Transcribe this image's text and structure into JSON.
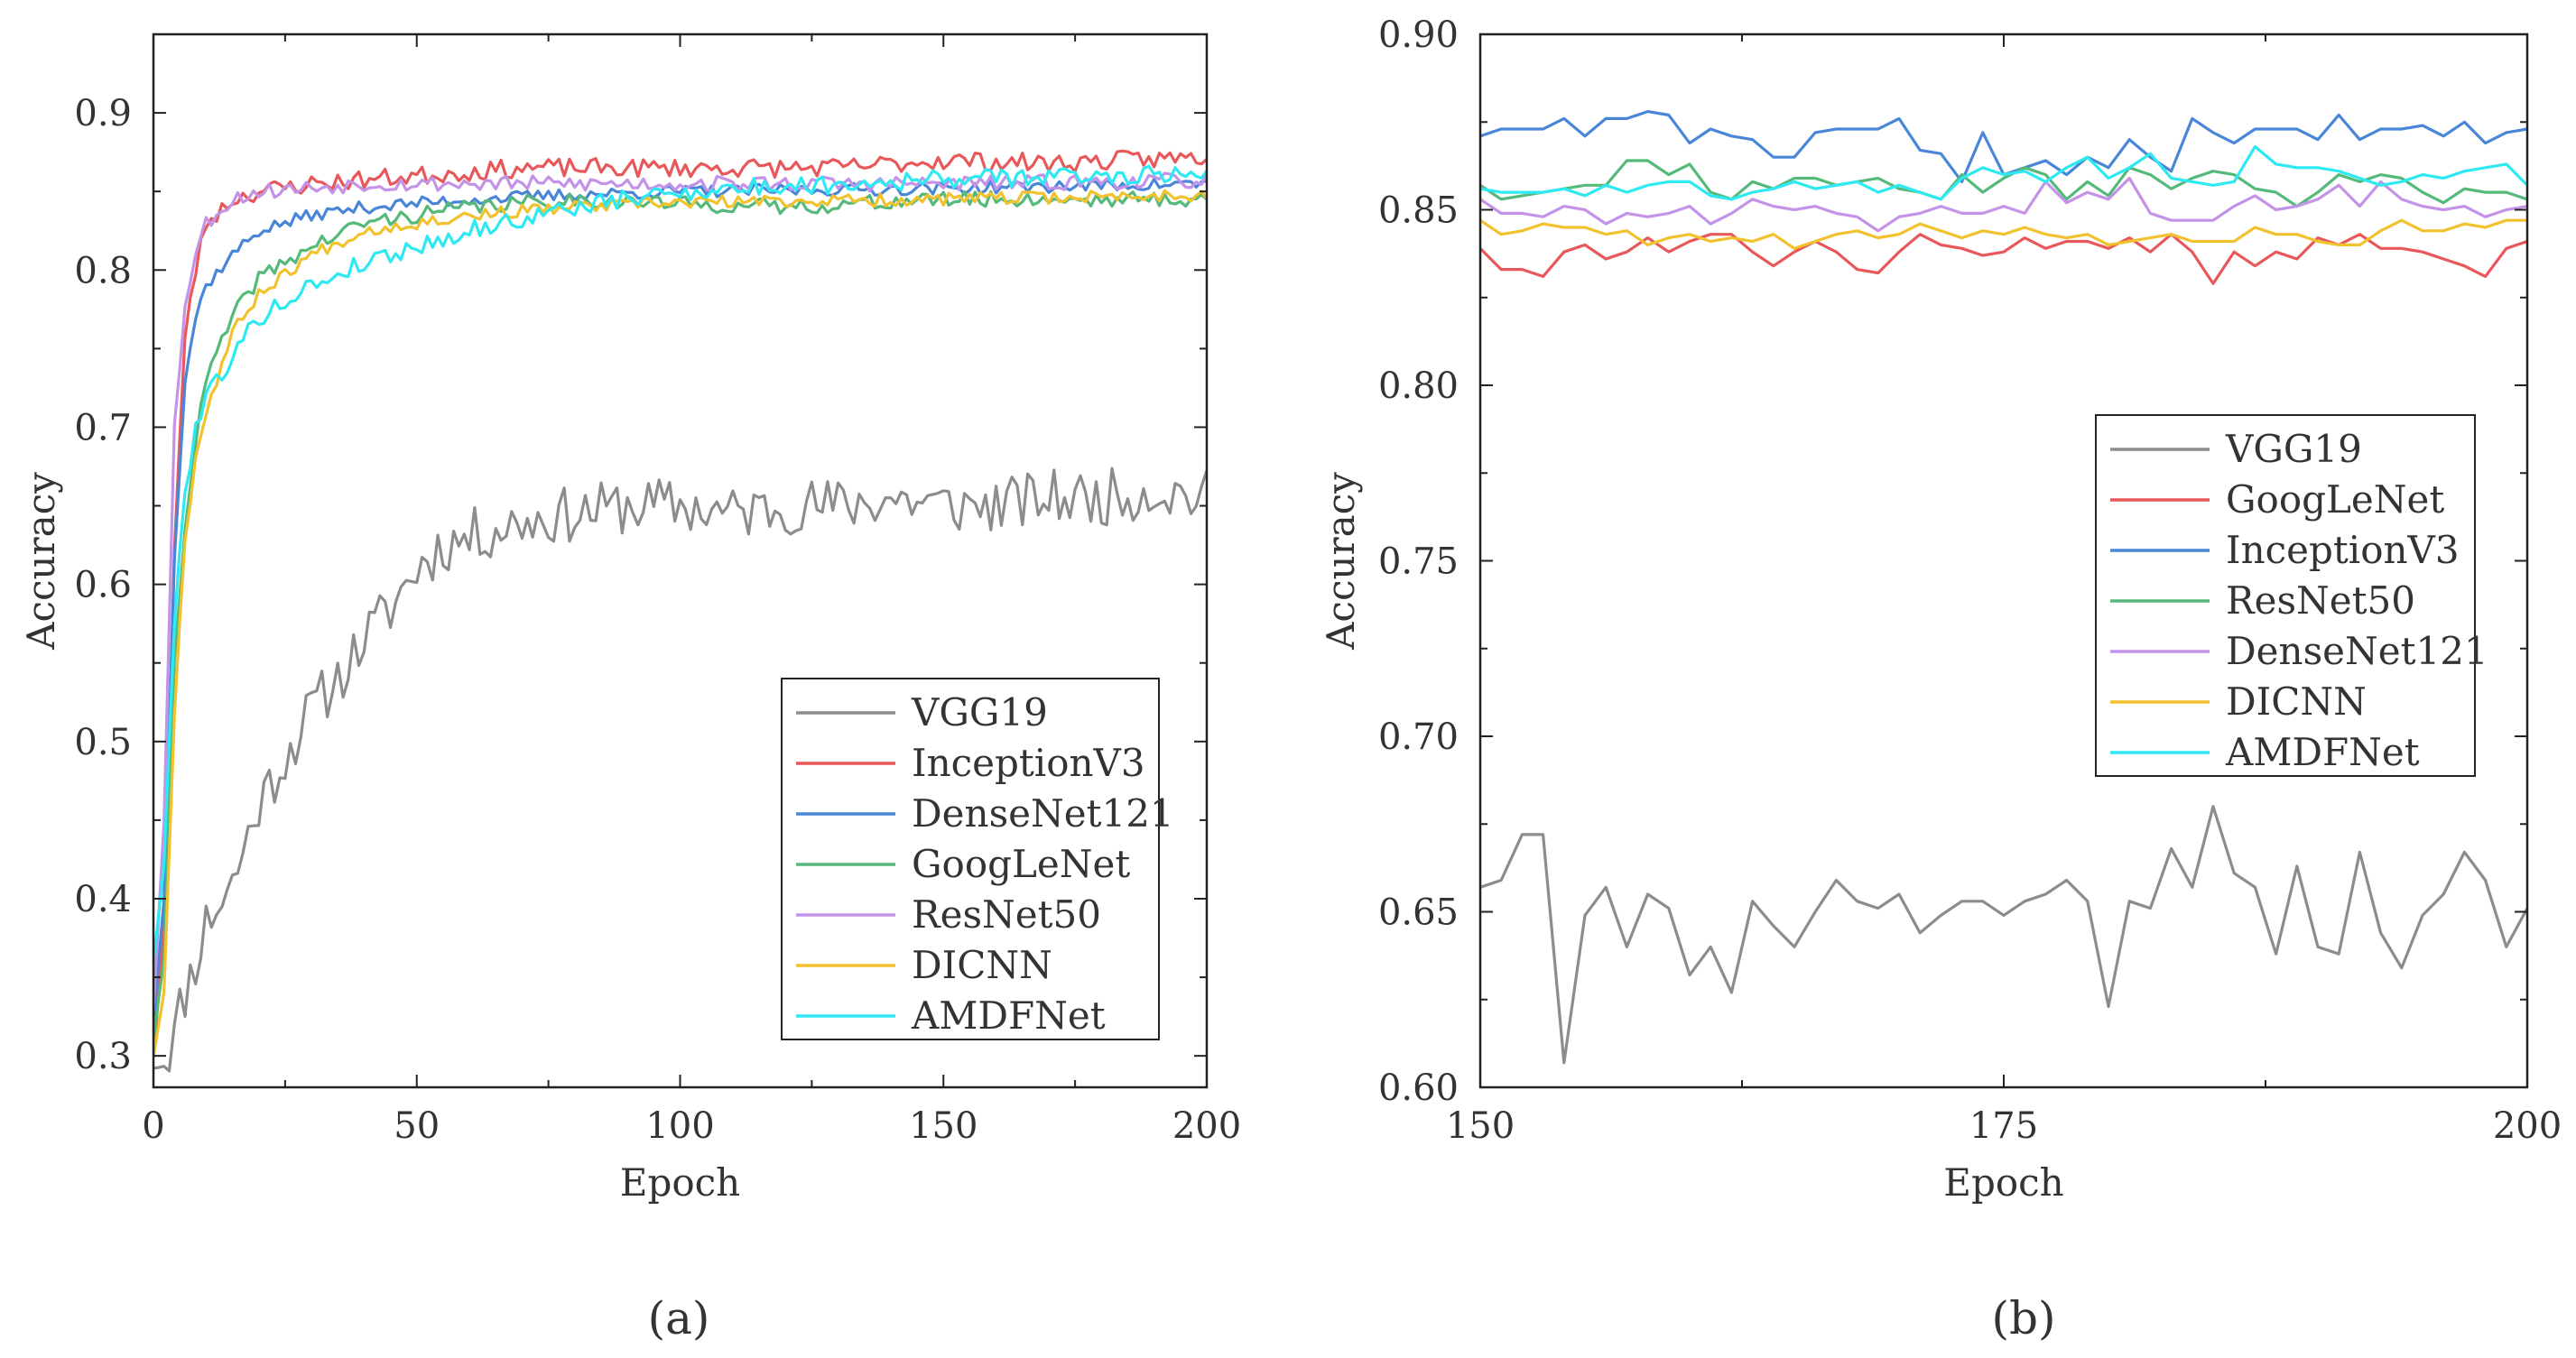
{
  "chart_data": [
    {
      "id": "panel-a",
      "caption": "(a)",
      "type": "line",
      "xlabel": "Epoch",
      "ylabel": "Accuracy",
      "xlim": [
        0,
        200
      ],
      "ylim": [
        0.28,
        0.95
      ],
      "xticks": [
        0,
        50,
        100,
        150,
        200
      ],
      "xtick_labels": [
        "0",
        "50",
        "100",
        "150",
        "200"
      ],
      "yticks": [
        0.3,
        0.4,
        0.5,
        0.6,
        0.7,
        0.8,
        0.9
      ],
      "ytick_labels": [
        "0.3",
        "0.4",
        "0.5",
        "0.6",
        "0.7",
        "0.8",
        "0.9"
      ],
      "legend_position": "bottom-right",
      "legend": [
        "VGG19",
        "InceptionV3",
        "DenseNet121",
        "GoogLeNet",
        "ResNet50",
        "DICNN",
        "AMDFNet"
      ],
      "series": [
        {
          "name": "VGG19",
          "color": "#8c8c8c",
          "start": 0.295,
          "plateau": 0.645,
          "tau": 28,
          "noise": 0.018,
          "seed": 11,
          "anchors": [
            [
              0,
              0.295
            ],
            [
              3,
              0.295
            ],
            [
              5,
              0.33
            ],
            [
              8,
              0.36
            ],
            [
              10,
              0.385
            ],
            [
              15,
              0.41
            ],
            [
              20,
              0.46
            ],
            [
              25,
              0.49
            ],
            [
              30,
              0.52
            ],
            [
              35,
              0.54
            ],
            [
              40,
              0.565
            ],
            [
              45,
              0.585
            ],
            [
              50,
              0.61
            ],
            [
              55,
              0.625
            ],
            [
              60,
              0.63
            ],
            [
              70,
              0.64
            ],
            [
              80,
              0.645
            ],
            [
              90,
              0.65
            ],
            [
              100,
              0.65
            ],
            [
              110,
              0.645
            ],
            [
              120,
              0.65
            ],
            [
              130,
              0.65
            ],
            [
              140,
              0.655
            ],
            [
              150,
              0.65
            ],
            [
              160,
              0.65
            ],
            [
              170,
              0.655
            ],
            [
              180,
              0.655
            ],
            [
              190,
              0.66
            ],
            [
              200,
              0.655
            ]
          ]
        },
        {
          "name": "InceptionV3",
          "color": "#e8585a",
          "noise": 0.006,
          "seed": 23,
          "anchors": [
            [
              0,
              0.3
            ],
            [
              2,
              0.38
            ],
            [
              4,
              0.62
            ],
            [
              6,
              0.76
            ],
            [
              8,
              0.8
            ],
            [
              10,
              0.83
            ],
            [
              15,
              0.845
            ],
            [
              20,
              0.85
            ],
            [
              30,
              0.855
            ],
            [
              50,
              0.86
            ],
            [
              70,
              0.865
            ],
            [
              100,
              0.865
            ],
            [
              130,
              0.865
            ],
            [
              150,
              0.87
            ],
            [
              170,
              0.868
            ],
            [
              200,
              0.872
            ]
          ]
        },
        {
          "name": "DenseNet121",
          "color": "#4a86d8",
          "noise": 0.004,
          "seed": 37,
          "anchors": [
            [
              0,
              0.32
            ],
            [
              2,
              0.4
            ],
            [
              4,
              0.62
            ],
            [
              6,
              0.73
            ],
            [
              8,
              0.77
            ],
            [
              10,
              0.79
            ],
            [
              15,
              0.81
            ],
            [
              20,
              0.825
            ],
            [
              30,
              0.835
            ],
            [
              40,
              0.84
            ],
            [
              60,
              0.845
            ],
            [
              80,
              0.848
            ],
            [
              100,
              0.85
            ],
            [
              150,
              0.852
            ],
            [
              200,
              0.855
            ]
          ]
        },
        {
          "name": "GoogLeNet",
          "color": "#55b97a",
          "noise": 0.005,
          "seed": 41,
          "anchors": [
            [
              0,
              0.31
            ],
            [
              2,
              0.36
            ],
            [
              4,
              0.55
            ],
            [
              6,
              0.64
            ],
            [
              8,
              0.69
            ],
            [
              10,
              0.73
            ],
            [
              15,
              0.77
            ],
            [
              20,
              0.795
            ],
            [
              30,
              0.815
            ],
            [
              40,
              0.83
            ],
            [
              60,
              0.84
            ],
            [
              80,
              0.845
            ],
            [
              100,
              0.842
            ],
            [
              120,
              0.84
            ],
            [
              150,
              0.845
            ],
            [
              200,
              0.845
            ]
          ]
        },
        {
          "name": "ResNet50",
          "color": "#c493e8",
          "noise": 0.005,
          "seed": 53,
          "anchors": [
            [
              0,
              0.33
            ],
            [
              2,
              0.45
            ],
            [
              4,
              0.7
            ],
            [
              6,
              0.78
            ],
            [
              8,
              0.81
            ],
            [
              10,
              0.83
            ],
            [
              15,
              0.845
            ],
            [
              20,
              0.85
            ],
            [
              40,
              0.855
            ],
            [
              60,
              0.855
            ],
            [
              100,
              0.855
            ],
            [
              150,
              0.855
            ],
            [
              200,
              0.857
            ]
          ]
        },
        {
          "name": "DICNN",
          "color": "#f2c22e",
          "noise": 0.004,
          "seed": 67,
          "anchors": [
            [
              0,
              0.3
            ],
            [
              2,
              0.34
            ],
            [
              4,
              0.52
            ],
            [
              6,
              0.63
            ],
            [
              8,
              0.68
            ],
            [
              10,
              0.71
            ],
            [
              15,
              0.76
            ],
            [
              20,
              0.785
            ],
            [
              30,
              0.81
            ],
            [
              40,
              0.825
            ],
            [
              60,
              0.835
            ],
            [
              80,
              0.84
            ],
            [
              100,
              0.843
            ],
            [
              150,
              0.845
            ],
            [
              200,
              0.848
            ]
          ]
        },
        {
          "name": "AMDFNet",
          "color": "#2ee9f2",
          "noise": 0.006,
          "seed": 79,
          "anchors": [
            [
              0,
              0.36
            ],
            [
              2,
              0.42
            ],
            [
              4,
              0.58
            ],
            [
              6,
              0.66
            ],
            [
              8,
              0.7
            ],
            [
              10,
              0.72
            ],
            [
              15,
              0.745
            ],
            [
              20,
              0.77
            ],
            [
              30,
              0.79
            ],
            [
              40,
              0.805
            ],
            [
              50,
              0.815
            ],
            [
              60,
              0.825
            ],
            [
              80,
              0.84
            ],
            [
              100,
              0.85
            ],
            [
              130,
              0.855
            ],
            [
              150,
              0.858
            ],
            [
              180,
              0.86
            ],
            [
              200,
              0.862
            ]
          ]
        }
      ]
    },
    {
      "id": "panel-b",
      "caption": "(b)",
      "type": "line",
      "xlabel": "Epoch",
      "ylabel": "Accuracy",
      "xlim": [
        150,
        200
      ],
      "ylim": [
        0.6,
        0.9
      ],
      "xticks": [
        150,
        175,
        200
      ],
      "xtick_labels": [
        "150",
        "175",
        "200"
      ],
      "yticks": [
        0.6,
        0.65,
        0.7,
        0.75,
        0.8,
        0.85,
        0.9
      ],
      "ytick_labels": [
        "0.60",
        "0.65",
        "0.70",
        "0.75",
        "0.80",
        "0.85",
        "0.90"
      ],
      "legend_position": "center-right",
      "legend": [
        "VGG19",
        "GoogLeNet",
        "InceptionV3",
        "ResNet50",
        "DenseNet121",
        "DICNN",
        "AMDFNet"
      ],
      "x": [
        150,
        151,
        152,
        153,
        154,
        155,
        156,
        157,
        158,
        159,
        160,
        161,
        162,
        163,
        164,
        165,
        166,
        167,
        168,
        169,
        170,
        171,
        172,
        173,
        174,
        175,
        176,
        177,
        178,
        179,
        180,
        181,
        182,
        183,
        184,
        185,
        186,
        187,
        188,
        189,
        190,
        191,
        192,
        193,
        194,
        195,
        196,
        197,
        198,
        199,
        200
      ],
      "series": [
        {
          "name": "VGG19",
          "color": "#8c8c8c",
          "values": [
            0.657,
            0.659,
            0.672,
            0.672,
            0.607,
            0.649,
            0.657,
            0.64,
            0.655,
            0.651,
            0.632,
            0.64,
            0.627,
            0.653,
            0.646,
            0.64,
            0.65,
            0.659,
            0.653,
            0.651,
            0.655,
            0.644,
            0.649,
            0.653,
            0.653,
            0.649,
            0.653,
            0.655,
            0.659,
            0.653,
            0.623,
            0.653,
            0.651,
            0.668,
            0.657,
            0.68,
            0.661,
            0.657,
            0.638,
            0.663,
            0.64,
            0.638,
            0.667,
            0.644,
            0.634,
            0.649,
            0.655,
            0.667,
            0.659,
            0.64,
            0.651
          ]
        },
        {
          "name": "GoogLeNet",
          "color": "#e8585a",
          "values": [
            0.839,
            0.833,
            0.833,
            0.831,
            0.838,
            0.84,
            0.836,
            0.838,
            0.842,
            0.838,
            0.841,
            0.843,
            0.843,
            0.838,
            0.834,
            0.838,
            0.841,
            0.838,
            0.833,
            0.832,
            0.838,
            0.843,
            0.84,
            0.839,
            0.837,
            0.838,
            0.842,
            0.839,
            0.841,
            0.841,
            0.839,
            0.842,
            0.838,
            0.843,
            0.838,
            0.829,
            0.838,
            0.834,
            0.838,
            0.836,
            0.842,
            0.84,
            0.843,
            0.839,
            0.839,
            0.838,
            0.836,
            0.834,
            0.831,
            0.839,
            0.841
          ]
        },
        {
          "name": "InceptionV3",
          "color": "#4a86d8",
          "values": [
            0.871,
            0.873,
            0.873,
            0.873,
            0.876,
            0.871,
            0.876,
            0.876,
            0.878,
            0.877,
            0.869,
            0.873,
            0.871,
            0.87,
            0.865,
            0.865,
            0.872,
            0.873,
            0.873,
            0.873,
            0.876,
            0.867,
            0.866,
            0.858,
            0.872,
            0.86,
            0.862,
            0.864,
            0.86,
            0.865,
            0.862,
            0.87,
            0.865,
            0.861,
            0.876,
            0.872,
            0.869,
            0.873,
            0.873,
            0.873,
            0.87,
            0.877,
            0.87,
            0.873,
            0.873,
            0.874,
            0.871,
            0.875,
            0.869,
            0.872,
            0.873
          ]
        },
        {
          "name": "ResNet50",
          "color": "#55b97a",
          "values": [
            0.857,
            0.853,
            0.854,
            0.855,
            0.856,
            0.857,
            0.857,
            0.864,
            0.864,
            0.86,
            0.863,
            0.855,
            0.853,
            0.858,
            0.856,
            0.859,
            0.859,
            0.857,
            0.858,
            0.859,
            0.856,
            0.855,
            0.853,
            0.86,
            0.855,
            0.859,
            0.862,
            0.86,
            0.853,
            0.858,
            0.854,
            0.862,
            0.86,
            0.856,
            0.859,
            0.861,
            0.86,
            0.856,
            0.855,
            0.851,
            0.855,
            0.86,
            0.858,
            0.86,
            0.859,
            0.855,
            0.852,
            0.856,
            0.855,
            0.855,
            0.853
          ]
        },
        {
          "name": "DenseNet121",
          "color": "#c493e8",
          "values": [
            0.853,
            0.849,
            0.849,
            0.848,
            0.851,
            0.85,
            0.846,
            0.849,
            0.848,
            0.849,
            0.851,
            0.846,
            0.849,
            0.853,
            0.851,
            0.85,
            0.851,
            0.849,
            0.848,
            0.844,
            0.848,
            0.849,
            0.851,
            0.849,
            0.849,
            0.851,
            0.849,
            0.858,
            0.852,
            0.855,
            0.853,
            0.859,
            0.849,
            0.847,
            0.847,
            0.847,
            0.851,
            0.854,
            0.85,
            0.851,
            0.853,
            0.857,
            0.851,
            0.858,
            0.853,
            0.851,
            0.85,
            0.851,
            0.848,
            0.85,
            0.851
          ]
        },
        {
          "name": "DICNN",
          "color": "#f2c22e",
          "values": [
            0.847,
            0.843,
            0.844,
            0.846,
            0.845,
            0.845,
            0.843,
            0.844,
            0.84,
            0.842,
            0.843,
            0.841,
            0.842,
            0.841,
            0.843,
            0.839,
            0.841,
            0.843,
            0.844,
            0.842,
            0.843,
            0.846,
            0.844,
            0.842,
            0.844,
            0.843,
            0.845,
            0.843,
            0.842,
            0.843,
            0.84,
            0.841,
            0.842,
            0.843,
            0.841,
            0.841,
            0.841,
            0.845,
            0.843,
            0.843,
            0.841,
            0.84,
            0.84,
            0.844,
            0.847,
            0.844,
            0.844,
            0.846,
            0.845,
            0.847,
            0.847
          ]
        },
        {
          "name": "AMDFNet",
          "color": "#2ee9f2",
          "values": [
            0.856,
            0.855,
            0.855,
            0.855,
            0.856,
            0.854,
            0.857,
            0.855,
            0.857,
            0.858,
            0.858,
            0.854,
            0.853,
            0.855,
            0.856,
            0.858,
            0.856,
            0.857,
            0.858,
            0.855,
            0.857,
            0.855,
            0.853,
            0.859,
            0.862,
            0.86,
            0.861,
            0.858,
            0.862,
            0.865,
            0.859,
            0.862,
            0.866,
            0.859,
            0.858,
            0.857,
            0.858,
            0.868,
            0.863,
            0.862,
            0.862,
            0.861,
            0.859,
            0.857,
            0.858,
            0.86,
            0.859,
            0.861,
            0.862,
            0.863,
            0.857
          ]
        }
      ]
    }
  ]
}
